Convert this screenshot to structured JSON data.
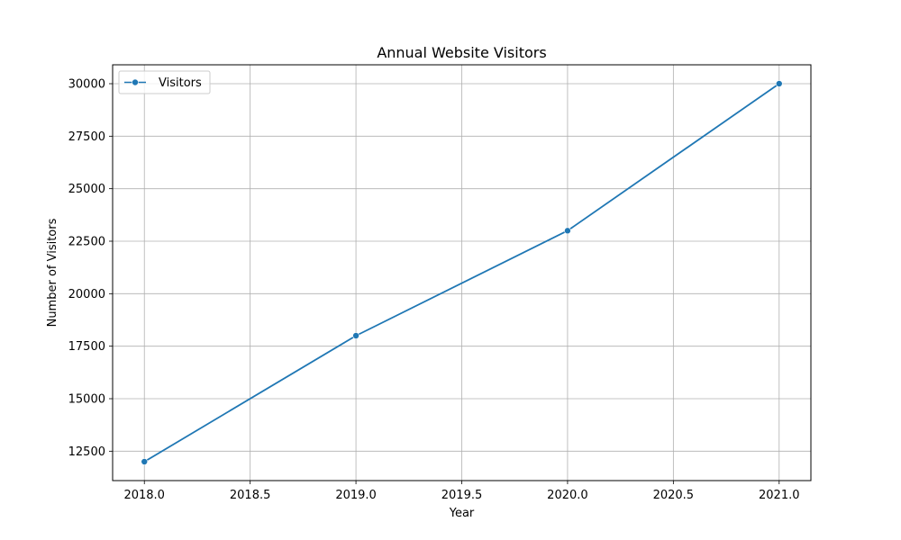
{
  "chart_data": {
    "type": "line",
    "title": "Annual Website Visitors",
    "xlabel": "Year",
    "ylabel": "Number of Visitors",
    "x": [
      2018,
      2019,
      2020,
      2021
    ],
    "series": [
      {
        "name": "Visitors",
        "values": [
          12000,
          18000,
          23000,
          30000
        ],
        "color": "#1f77b4",
        "marker": "circle"
      }
    ],
    "xlim": [
      2017.85,
      2021.15
    ],
    "ylim": [
      11100,
      30900
    ],
    "x_ticks": [
      2018.0,
      2018.5,
      2019.0,
      2019.5,
      2020.0,
      2020.5,
      2021.0
    ],
    "x_tick_labels": [
      "2018.0",
      "2018.5",
      "2019.0",
      "2019.5",
      "2020.0",
      "2020.5",
      "2021.0"
    ],
    "y_ticks": [
      12500,
      15000,
      17500,
      20000,
      22500,
      25000,
      27500,
      30000
    ],
    "y_tick_labels": [
      "12500",
      "15000",
      "17500",
      "20000",
      "22500",
      "25000",
      "27500",
      "30000"
    ],
    "grid": true,
    "grid_color": "#b0b0b0",
    "legend_position": "upper-left"
  }
}
